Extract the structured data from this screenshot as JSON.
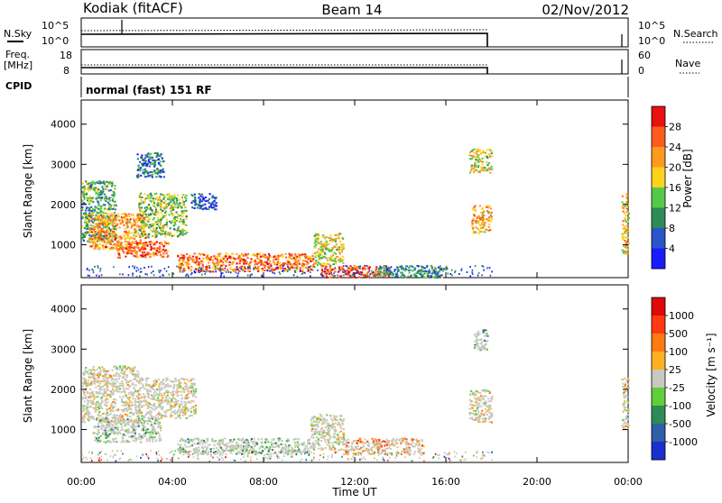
{
  "header": {
    "station": "Kodiak (fitACF)",
    "beam": "Beam 14",
    "date": "02/Nov/2012"
  },
  "params": {
    "nsky_label": "N.Sky",
    "nsearch_label": "N.Search",
    "freq_label_1": "Freq.",
    "freq_label_2": "[MHz]",
    "nave_label": "Nave",
    "cpid_label": "CPID",
    "cpid_value": "normal (fast) 151 RF",
    "noise_ticks": [
      "10^5",
      "10^0"
    ],
    "freq_ticks": [
      "18",
      "8"
    ],
    "nave_ticks": [
      "60",
      "0"
    ]
  },
  "chart_data": [
    {
      "type": "heatmap",
      "name": "power-panel",
      "ylabel": "Slant Range [km]",
      "xlabel": "",
      "x_ticks": [
        "00:00",
        "04:00",
        "08:00",
        "12:00",
        "16:00",
        "20:00",
        "00:00"
      ],
      "x_range_hours": [
        0,
        24
      ],
      "y_ticks": [
        1000,
        2000,
        3000,
        4000
      ],
      "y_range_km": [
        180,
        4600
      ],
      "colorbar": {
        "label": "Power [dB]",
        "ticks": [
          "4",
          "8",
          "12",
          "16",
          "20",
          "24",
          "28"
        ],
        "colors": [
          "#1a1aff",
          "#2a55c8",
          "#2e8b57",
          "#55c84a",
          "#ffd21e",
          "#ff9a1e",
          "#ff5a1e",
          "#e81010"
        ]
      },
      "regions": [
        {
          "h0": 0.0,
          "h1": 1.5,
          "r0": 1100,
          "r1": 2600,
          "level": 0.35
        },
        {
          "h0": 0.3,
          "h1": 2.8,
          "r0": 900,
          "r1": 1800,
          "level": 0.72
        },
        {
          "h0": 1.5,
          "h1": 3.8,
          "r0": 700,
          "r1": 1100,
          "level": 0.85
        },
        {
          "h0": 2.5,
          "h1": 4.6,
          "r0": 1200,
          "r1": 2300,
          "level": 0.45
        },
        {
          "h0": 2.4,
          "h1": 3.6,
          "r0": 2700,
          "r1": 3300,
          "level": 0.2
        },
        {
          "h0": 4.8,
          "h1": 5.9,
          "r0": 1900,
          "r1": 2300,
          "level": 0.15
        },
        {
          "h0": 4.2,
          "h1": 10.2,
          "r0": 350,
          "r1": 800,
          "level": 0.8
        },
        {
          "h0": 10.2,
          "h1": 11.5,
          "r0": 500,
          "r1": 1300,
          "level": 0.55
        },
        {
          "h0": 10.5,
          "h1": 13.5,
          "r0": 200,
          "r1": 500,
          "level": 0.9
        },
        {
          "h0": 13.0,
          "h1": 16.0,
          "r0": 200,
          "r1": 500,
          "level": 0.3
        },
        {
          "h0": 17.0,
          "h1": 18.0,
          "r0": 2800,
          "r1": 3400,
          "level": 0.55
        },
        {
          "h0": 17.1,
          "h1": 18.0,
          "r0": 1300,
          "r1": 2000,
          "level": 0.7
        },
        {
          "h0": 23.7,
          "h1": 24.0,
          "r0": 800,
          "r1": 2300,
          "level": 0.6
        }
      ]
    },
    {
      "type": "heatmap",
      "name": "velocity-panel",
      "ylabel": "Slant Range [km]",
      "xlabel": "Time UT",
      "x_ticks": [
        "00:00",
        "04:00",
        "08:00",
        "12:00",
        "16:00",
        "20:00",
        "00:00"
      ],
      "x_range_hours": [
        0,
        24
      ],
      "y_ticks": [
        1000,
        2000,
        3000,
        4000
      ],
      "y_range_km": [
        180,
        4600
      ],
      "colorbar": {
        "label": "Velocity [m s⁻¹]",
        "ticks": [
          "1000",
          "500",
          "100",
          "25",
          "-25",
          "-100",
          "-500",
          "-1000"
        ],
        "colors": [
          "#1a2fd0",
          "#2e5fa8",
          "#2e8b57",
          "#5fcf3a",
          "#c8c8c0",
          "#ffb020",
          "#ff7a10",
          "#ff3a10",
          "#e00808"
        ]
      },
      "regions": [
        {
          "h0": 0.0,
          "h1": 2.5,
          "r0": 1200,
          "r1": 2600,
          "level": 0.55
        },
        {
          "h0": 0.5,
          "h1": 3.5,
          "r0": 700,
          "r1": 1300,
          "level": 0.35
        },
        {
          "h0": 2.5,
          "h1": 5.0,
          "r0": 1300,
          "r1": 2300,
          "level": 0.55
        },
        {
          "h0": 4.2,
          "h1": 10.0,
          "r0": 400,
          "r1": 800,
          "level": 0.35
        },
        {
          "h0": 10.0,
          "h1": 11.5,
          "r0": 500,
          "r1": 1400,
          "level": 0.55
        },
        {
          "h0": 11.5,
          "h1": 15.0,
          "r0": 400,
          "r1": 800,
          "level": 0.7
        },
        {
          "h0": 17.0,
          "h1": 18.0,
          "r0": 1200,
          "r1": 2000,
          "level": 0.55
        },
        {
          "h0": 17.2,
          "h1": 17.8,
          "r0": 3000,
          "r1": 3500,
          "level": 0.35
        },
        {
          "h0": 23.7,
          "h1": 24.0,
          "r0": 1000,
          "r1": 2300,
          "level": 0.55
        }
      ]
    }
  ]
}
